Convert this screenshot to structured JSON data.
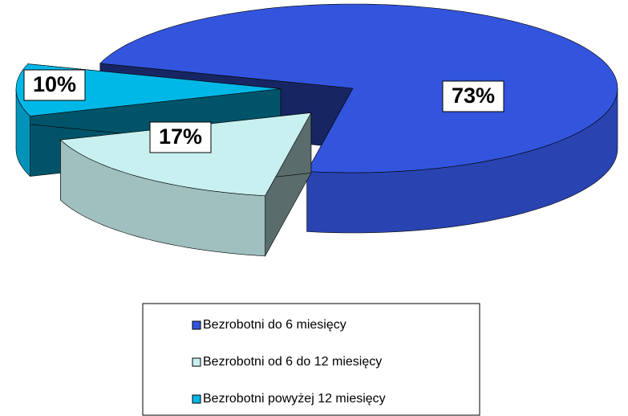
{
  "chart_data": {
    "type": "pie",
    "categories": [
      "Bezrobotni do 6 miesięcy",
      "Bezrobotni od 6 do 12 miesięcy",
      "Bezrobotni powyżej 12 miesięcy"
    ],
    "values": [
      73,
      17,
      10
    ],
    "value_labels": [
      "73%",
      "17%",
      "10%"
    ],
    "colors": [
      "#3355dd",
      "#c8f0f0",
      "#00b8e8"
    ]
  }
}
